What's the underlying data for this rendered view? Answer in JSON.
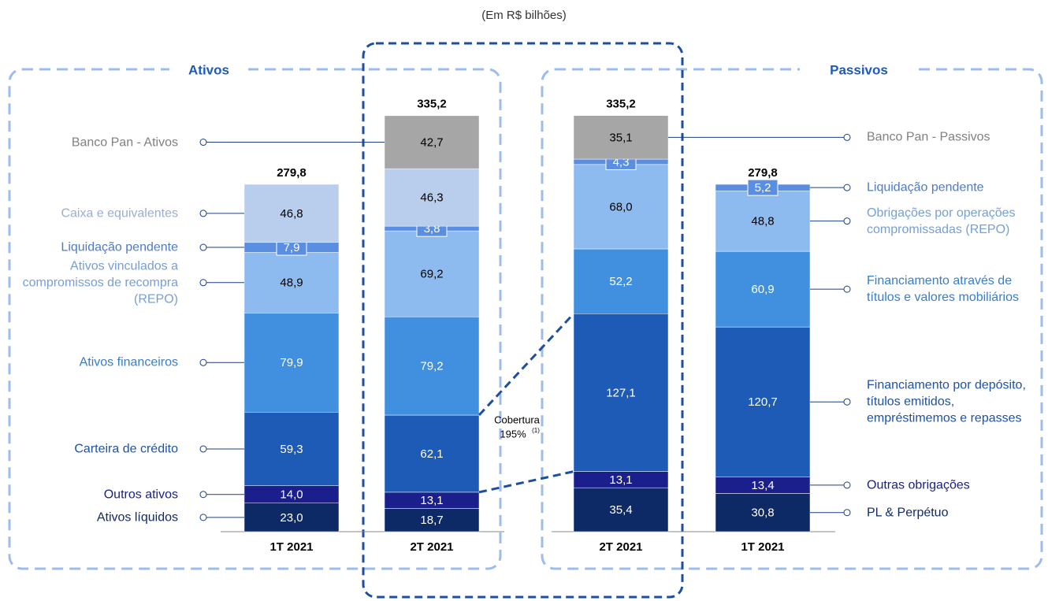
{
  "subtitle": "(Em R$ bilhões)",
  "annotation": {
    "text": "Cobertura",
    "value_text": "195%",
    "note": "(1)"
  },
  "chart_data": [
    {
      "type": "stacked-bar",
      "title": "Ativos",
      "legend": "left",
      "categories": [
        "1T 2021",
        "2T 2021"
      ],
      "totals": [
        279.8,
        335.2
      ],
      "total_labels": [
        "279,8",
        "335,2"
      ],
      "series": [
        {
          "name": "Ativos líquidos",
          "color": "#0e2a66",
          "values": [
            23.0,
            18.7
          ],
          "value_labels": [
            "23,0",
            "18,7"
          ]
        },
        {
          "name": "Outros ativos",
          "color": "#1b1f8c",
          "values": [
            14.0,
            13.1
          ],
          "value_labels": [
            "14,0",
            "13,1"
          ]
        },
        {
          "name": "Carteira de crédito",
          "color": "#1d5bb6",
          "values": [
            59.3,
            62.1
          ],
          "value_labels": [
            "59,3",
            "62,1"
          ]
        },
        {
          "name": "Ativos financeiros",
          "color": "#4190e0",
          "values": [
            79.9,
            79.2
          ],
          "value_labels": [
            "79,9",
            "79,2"
          ]
        },
        {
          "name": "Ativos vinculados a compromissos de recompra (REPO)",
          "color": "#8dbbf0",
          "values": [
            48.9,
            69.2
          ],
          "value_labels": [
            "48,9",
            "69,2"
          ]
        },
        {
          "name": "Liquidação pendente",
          "color": "#5a8ee0",
          "values": [
            7.9,
            3.8
          ],
          "value_labels": [
            "7,9",
            "3,8"
          ]
        },
        {
          "name": "Caixa e equivalentes",
          "color": "#b9ceec",
          "values": [
            46.8,
            46.3
          ],
          "value_labels": [
            "46,8",
            "46,3"
          ]
        },
        {
          "name": "Banco Pan - Ativos",
          "color": "#a6a6a6",
          "values": [
            null,
            42.7
          ],
          "value_labels": [
            null,
            "42,7"
          ]
        }
      ]
    },
    {
      "type": "stacked-bar",
      "title": "Passivos",
      "legend": "right",
      "categories": [
        "2T 2021",
        "1T 2021"
      ],
      "totals": [
        335.2,
        279.8
      ],
      "total_labels": [
        "335,2",
        "279,8"
      ],
      "series": [
        {
          "name": "PL & Perpétuo",
          "color": "#0e2a66",
          "values": [
            35.4,
            30.8
          ],
          "value_labels": [
            "35,4",
            "30,8"
          ]
        },
        {
          "name": "Outras obrigações",
          "color": "#1b1f8c",
          "values": [
            13.1,
            13.4
          ],
          "value_labels": [
            "13,1",
            "13,4"
          ]
        },
        {
          "name": "Financiamento por depósito, títulos emitidos, empréstimemos e repasses",
          "color": "#1d5bb6",
          "values": [
            127.1,
            120.7
          ],
          "value_labels": [
            "127,1",
            "120,7"
          ]
        },
        {
          "name": "Financiamento através de títulos e valores mobiliários",
          "color": "#4190e0",
          "values": [
            52.2,
            60.9
          ],
          "value_labels": [
            "52,2",
            "60,9"
          ]
        },
        {
          "name": "Obrigações por operações compromissadas (REPO)",
          "color": "#8dbbf0",
          "values": [
            68.0,
            48.8
          ],
          "value_labels": [
            "68,0",
            "48,8"
          ]
        },
        {
          "name": "Liquidação pendente",
          "color": "#5a8ee0",
          "values": [
            4.3,
            5.2
          ],
          "value_labels": [
            "4,3",
            "5,2"
          ]
        },
        {
          "name": "Banco Pan - Passivos",
          "color": "#a6a6a6",
          "values": [
            35.1,
            null
          ],
          "value_labels": [
            "35,1",
            null
          ]
        }
      ]
    }
  ]
}
